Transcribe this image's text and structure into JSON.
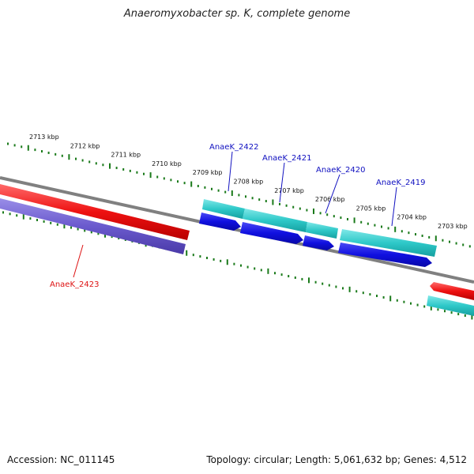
{
  "title": "Anaeromyxobacter sp. K, complete genome",
  "footer": {
    "accession": "Accession: NC_011145",
    "summary": "Topology: circular; Length: 5,061,632 bp; Genes: 4,512"
  },
  "colors": {
    "backbone": "#808080",
    "scale_ticks": "#1a7a1a",
    "forward_gene": "#2ec8c8",
    "forward_cds": "#1010e0",
    "reverse_gene": "#ee1111",
    "reverse_cds": "#6a5acd",
    "label_forward": "#1010c0",
    "label_reverse": "#dd1111"
  },
  "scale_labels": [
    "2713 kbp",
    "2712 kbp",
    "2711 kbp",
    "2710 kbp",
    "2709 kbp",
    "2708 kbp",
    "2707 kbp",
    "2706 kbp",
    "2705 kbp",
    "2704 kbp",
    "2703 kbp"
  ],
  "genes": [
    {
      "name": "AnaeK_2423",
      "strand": "reverse"
    },
    {
      "name": "AnaeK_2422",
      "strand": "forward"
    },
    {
      "name": "AnaeK_2421",
      "strand": "forward"
    },
    {
      "name": "AnaeK_2420",
      "strand": "forward"
    },
    {
      "name": "AnaeK_2419",
      "strand": "forward"
    }
  ]
}
